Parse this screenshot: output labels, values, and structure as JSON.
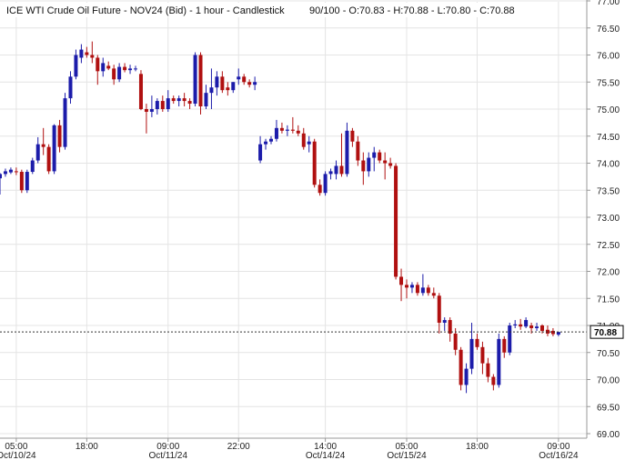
{
  "chart_data": {
    "type": "candlestick",
    "title": "ICE WTI Crude Oil Future - NOV24 (Bid) - 1 hour - Candlestick",
    "ohlc_summary": "90/100 - O:70.83 - H:70.88 - L:70.80 - C:70.88",
    "last_value": "70.88",
    "ylim": [
      69.0,
      77.0
    ],
    "yticks": [
      69.0,
      69.5,
      70.0,
      70.5,
      71.0,
      71.5,
      72.0,
      72.5,
      73.0,
      73.5,
      74.0,
      74.5,
      75.0,
      75.5,
      76.0,
      76.5,
      77.0
    ],
    "xticks": [
      {
        "index": 3,
        "time": "05:00",
        "date": "Oct/10/24"
      },
      {
        "index": 16,
        "time": "18:00",
        "date": ""
      },
      {
        "index": 31,
        "time": "09:00",
        "date": "Oct/11/24"
      },
      {
        "index": 44,
        "time": "22:00",
        "date": ""
      },
      {
        "index": 60,
        "time": "14:00",
        "date": "Oct/14/24"
      },
      {
        "index": 75,
        "time": "05:00",
        "date": "Oct/15/24"
      },
      {
        "index": 88,
        "time": "18:00",
        "date": ""
      },
      {
        "index": 103,
        "time": "09:00",
        "date": "Oct/16/24"
      }
    ],
    "colors": {
      "up": "#1c1caa",
      "down": "#b01010",
      "grid": "#e4e4e4",
      "axis": "#999999"
    },
    "candles": [
      {
        "i": 0,
        "o": 73.72,
        "h": 73.82,
        "l": 73.42,
        "c": 73.8
      },
      {
        "i": 1,
        "o": 73.8,
        "h": 73.9,
        "l": 73.75,
        "c": 73.85
      },
      {
        "i": 2,
        "o": 73.83,
        "h": 73.92,
        "l": 73.8,
        "c": 73.88
      },
      {
        "i": 3,
        "o": 73.85,
        "h": 73.92,
        "l": 73.78,
        "c": 73.84
      },
      {
        "i": 4,
        "o": 73.84,
        "h": 73.88,
        "l": 73.45,
        "c": 73.5
      },
      {
        "i": 5,
        "o": 73.5,
        "h": 73.88,
        "l": 73.45,
        "c": 73.84
      },
      {
        "i": 6,
        "o": 73.84,
        "h": 74.1,
        "l": 73.8,
        "c": 74.05
      },
      {
        "i": 7,
        "o": 74.05,
        "h": 74.48,
        "l": 74.0,
        "c": 74.35
      },
      {
        "i": 8,
        "o": 74.35,
        "h": 74.65,
        "l": 74.15,
        "c": 74.3
      },
      {
        "i": 9,
        "o": 74.3,
        "h": 74.35,
        "l": 73.8,
        "c": 73.85
      },
      {
        "i": 10,
        "o": 73.85,
        "h": 74.72,
        "l": 73.8,
        "c": 74.7
      },
      {
        "i": 11,
        "o": 74.7,
        "h": 74.8,
        "l": 74.2,
        "c": 74.3
      },
      {
        "i": 12,
        "o": 74.3,
        "h": 75.3,
        "l": 74.25,
        "c": 75.2
      },
      {
        "i": 13,
        "o": 75.2,
        "h": 75.7,
        "l": 75.1,
        "c": 75.6
      },
      {
        "i": 14,
        "o": 75.6,
        "h": 76.1,
        "l": 75.55,
        "c": 76.0
      },
      {
        "i": 15,
        "o": 75.95,
        "h": 76.2,
        "l": 75.85,
        "c": 76.1
      },
      {
        "i": 16,
        "o": 76.05,
        "h": 76.15,
        "l": 75.95,
        "c": 76.0
      },
      {
        "i": 17,
        "o": 76.0,
        "h": 76.25,
        "l": 75.85,
        "c": 75.95
      },
      {
        "i": 18,
        "o": 75.95,
        "h": 76.0,
        "l": 75.45,
        "c": 75.7
      },
      {
        "i": 19,
        "o": 75.7,
        "h": 75.95,
        "l": 75.6,
        "c": 75.85
      },
      {
        "i": 20,
        "o": 75.8,
        "h": 75.88,
        "l": 75.72,
        "c": 75.75
      },
      {
        "i": 21,
        "o": 75.75,
        "h": 75.82,
        "l": 75.45,
        "c": 75.55
      },
      {
        "i": 22,
        "o": 75.55,
        "h": 75.85,
        "l": 75.5,
        "c": 75.78
      },
      {
        "i": 23,
        "o": 75.78,
        "h": 75.85,
        "l": 75.68,
        "c": 75.72
      },
      {
        "i": 24,
        "o": 75.72,
        "h": 75.82,
        "l": 75.65,
        "c": 75.75
      },
      {
        "i": 25,
        "o": 75.75,
        "h": 75.8,
        "l": 75.7,
        "c": 75.75
      },
      {
        "i": 26,
        "o": 75.65,
        "h": 75.72,
        "l": 74.98,
        "c": 75.0
      },
      {
        "i": 27,
        "o": 75.0,
        "h": 75.1,
        "l": 74.55,
        "c": 74.95
      },
      {
        "i": 28,
        "o": 74.95,
        "h": 75.25,
        "l": 74.85,
        "c": 75.0
      },
      {
        "i": 29,
        "o": 75.0,
        "h": 75.2,
        "l": 74.9,
        "c": 75.15
      },
      {
        "i": 30,
        "o": 75.15,
        "h": 75.25,
        "l": 74.95,
        "c": 75.0
      },
      {
        "i": 31,
        "o": 75.0,
        "h": 75.35,
        "l": 74.95,
        "c": 75.2
      },
      {
        "i": 32,
        "o": 75.2,
        "h": 75.25,
        "l": 75.1,
        "c": 75.15
      },
      {
        "i": 33,
        "o": 75.15,
        "h": 75.25,
        "l": 75.05,
        "c": 75.2
      },
      {
        "i": 34,
        "o": 75.2,
        "h": 75.3,
        "l": 75.05,
        "c": 75.15
      },
      {
        "i": 35,
        "o": 75.15,
        "h": 75.2,
        "l": 75.0,
        "c": 75.1
      },
      {
        "i": 36,
        "o": 75.1,
        "h": 76.05,
        "l": 75.05,
        "c": 76.0
      },
      {
        "i": 37,
        "o": 76.0,
        "h": 76.05,
        "l": 74.9,
        "c": 75.05
      },
      {
        "i": 38,
        "o": 75.05,
        "h": 75.45,
        "l": 75.0,
        "c": 75.3
      },
      {
        "i": 39,
        "o": 75.3,
        "h": 75.75,
        "l": 75.0,
        "c": 75.4
      },
      {
        "i": 40,
        "o": 75.4,
        "h": 75.7,
        "l": 75.25,
        "c": 75.6
      },
      {
        "i": 41,
        "o": 75.6,
        "h": 75.7,
        "l": 75.3,
        "c": 75.35
      },
      {
        "i": 42,
        "o": 75.4,
        "h": 75.5,
        "l": 75.25,
        "c": 75.35
      },
      {
        "i": 43,
        "o": 75.35,
        "h": 75.5,
        "l": 75.3,
        "c": 75.5
      },
      {
        "i": 44,
        "o": 75.55,
        "h": 75.75,
        "l": 75.45,
        "c": 75.6
      },
      {
        "i": 45,
        "o": 75.6,
        "h": 75.65,
        "l": 75.45,
        "c": 75.5
      },
      {
        "i": 46,
        "o": 75.5,
        "h": 75.55,
        "l": 75.4,
        "c": 75.45
      },
      {
        "i": 47,
        "o": 75.45,
        "h": 75.6,
        "l": 75.35,
        "c": 75.5
      },
      {
        "i": 48,
        "o": 74.05,
        "h": 74.5,
        "l": 74.0,
        "c": 74.35
      },
      {
        "i": 49,
        "o": 74.35,
        "h": 74.45,
        "l": 74.25,
        "c": 74.4
      },
      {
        "i": 50,
        "o": 74.4,
        "h": 74.5,
        "l": 74.35,
        "c": 74.45
      },
      {
        "i": 51,
        "o": 74.45,
        "h": 74.8,
        "l": 74.4,
        "c": 74.65
      },
      {
        "i": 52,
        "o": 74.65,
        "h": 74.75,
        "l": 74.55,
        "c": 74.6
      },
      {
        "i": 53,
        "o": 74.6,
        "h": 74.7,
        "l": 74.5,
        "c": 74.62
      },
      {
        "i": 54,
        "o": 74.62,
        "h": 74.85,
        "l": 74.55,
        "c": 74.6
      },
      {
        "i": 55,
        "o": 74.6,
        "h": 74.7,
        "l": 74.5,
        "c": 74.55
      },
      {
        "i": 56,
        "o": 74.55,
        "h": 74.65,
        "l": 74.25,
        "c": 74.3
      },
      {
        "i": 57,
        "o": 74.35,
        "h": 74.5,
        "l": 74.2,
        "c": 74.4
      },
      {
        "i": 58,
        "o": 74.4,
        "h": 74.45,
        "l": 73.55,
        "c": 73.6
      },
      {
        "i": 59,
        "o": 73.6,
        "h": 73.7,
        "l": 73.4,
        "c": 73.45
      },
      {
        "i": 60,
        "o": 73.45,
        "h": 73.85,
        "l": 73.4,
        "c": 73.8
      },
      {
        "i": 61,
        "o": 73.8,
        "h": 73.9,
        "l": 73.7,
        "c": 73.85
      },
      {
        "i": 62,
        "o": 73.8,
        "h": 74.05,
        "l": 73.7,
        "c": 73.95
      },
      {
        "i": 63,
        "o": 73.95,
        "h": 74.55,
        "l": 73.75,
        "c": 73.8
      },
      {
        "i": 64,
        "o": 73.8,
        "h": 74.75,
        "l": 73.75,
        "c": 74.6
      },
      {
        "i": 65,
        "o": 74.6,
        "h": 74.65,
        "l": 74.3,
        "c": 74.4
      },
      {
        "i": 66,
        "o": 74.4,
        "h": 74.5,
        "l": 73.95,
        "c": 74.05
      },
      {
        "i": 67,
        "o": 74.05,
        "h": 74.2,
        "l": 73.6,
        "c": 73.85
      },
      {
        "i": 68,
        "o": 73.85,
        "h": 74.2,
        "l": 73.75,
        "c": 74.1
      },
      {
        "i": 69,
        "o": 74.1,
        "h": 74.3,
        "l": 73.85,
        "c": 74.2
      },
      {
        "i": 70,
        "o": 74.2,
        "h": 74.25,
        "l": 74.0,
        "c": 74.05
      },
      {
        "i": 71,
        "o": 74.05,
        "h": 74.2,
        "l": 73.7,
        "c": 74.0
      },
      {
        "i": 72,
        "o": 74.0,
        "h": 74.1,
        "l": 73.9,
        "c": 73.95
      },
      {
        "i": 73,
        "o": 73.95,
        "h": 74.0,
        "l": 71.85,
        "c": 71.9
      },
      {
        "i": 74,
        "o": 71.9,
        "h": 72.05,
        "l": 71.45,
        "c": 71.75
      },
      {
        "i": 75,
        "o": 71.75,
        "h": 71.85,
        "l": 71.5,
        "c": 71.7
      },
      {
        "i": 76,
        "o": 71.7,
        "h": 71.8,
        "l": 71.6,
        "c": 71.75
      },
      {
        "i": 77,
        "o": 71.75,
        "h": 71.8,
        "l": 71.55,
        "c": 71.6
      },
      {
        "i": 78,
        "o": 71.6,
        "h": 71.95,
        "l": 71.55,
        "c": 71.7
      },
      {
        "i": 79,
        "o": 71.7,
        "h": 71.75,
        "l": 71.55,
        "c": 71.6
      },
      {
        "i": 80,
        "o": 71.6,
        "h": 71.7,
        "l": 71.5,
        "c": 71.55
      },
      {
        "i": 81,
        "o": 71.55,
        "h": 71.6,
        "l": 70.85,
        "c": 71.05
      },
      {
        "i": 82,
        "o": 71.05,
        "h": 71.15,
        "l": 70.9,
        "c": 71.1
      },
      {
        "i": 83,
        "o": 71.1,
        "h": 71.15,
        "l": 70.7,
        "c": 70.85
      },
      {
        "i": 84,
        "o": 70.85,
        "h": 70.95,
        "l": 70.45,
        "c": 70.55
      },
      {
        "i": 85,
        "o": 70.55,
        "h": 70.6,
        "l": 69.8,
        "c": 69.9
      },
      {
        "i": 86,
        "o": 69.9,
        "h": 70.3,
        "l": 69.75,
        "c": 70.2
      },
      {
        "i": 87,
        "o": 70.2,
        "h": 71.05,
        "l": 70.1,
        "c": 70.75
      },
      {
        "i": 88,
        "o": 70.75,
        "h": 70.85,
        "l": 70.55,
        "c": 70.6
      },
      {
        "i": 89,
        "o": 70.6,
        "h": 70.7,
        "l": 70.1,
        "c": 70.3
      },
      {
        "i": 90,
        "o": 70.3,
        "h": 70.4,
        "l": 69.95,
        "c": 70.05
      },
      {
        "i": 91,
        "o": 70.05,
        "h": 70.1,
        "l": 69.8,
        "c": 69.9
      },
      {
        "i": 92,
        "o": 69.9,
        "h": 70.85,
        "l": 69.85,
        "c": 70.75
      },
      {
        "i": 93,
        "o": 70.75,
        "h": 70.8,
        "l": 70.4,
        "c": 70.5
      },
      {
        "i": 94,
        "o": 70.5,
        "h": 71.05,
        "l": 70.45,
        "c": 71.0
      },
      {
        "i": 95,
        "o": 71.0,
        "h": 71.1,
        "l": 70.95,
        "c": 71.02
      },
      {
        "i": 96,
        "o": 71.02,
        "h": 71.12,
        "l": 70.92,
        "c": 70.98
      },
      {
        "i": 97,
        "o": 70.98,
        "h": 71.15,
        "l": 70.95,
        "c": 71.1
      },
      {
        "i": 98,
        "o": 71.0,
        "h": 71.05,
        "l": 70.85,
        "c": 70.95
      },
      {
        "i": 99,
        "o": 70.95,
        "h": 71.05,
        "l": 70.9,
        "c": 70.98
      },
      {
        "i": 100,
        "o": 71.0,
        "h": 71.02,
        "l": 70.85,
        "c": 70.9
      },
      {
        "i": 101,
        "o": 70.92,
        "h": 71.0,
        "l": 70.8,
        "c": 70.85
      },
      {
        "i": 102,
        "o": 70.9,
        "h": 70.95,
        "l": 70.8,
        "c": 70.84
      },
      {
        "i": 103,
        "o": 70.83,
        "h": 70.88,
        "l": 70.8,
        "c": 70.88
      }
    ]
  }
}
